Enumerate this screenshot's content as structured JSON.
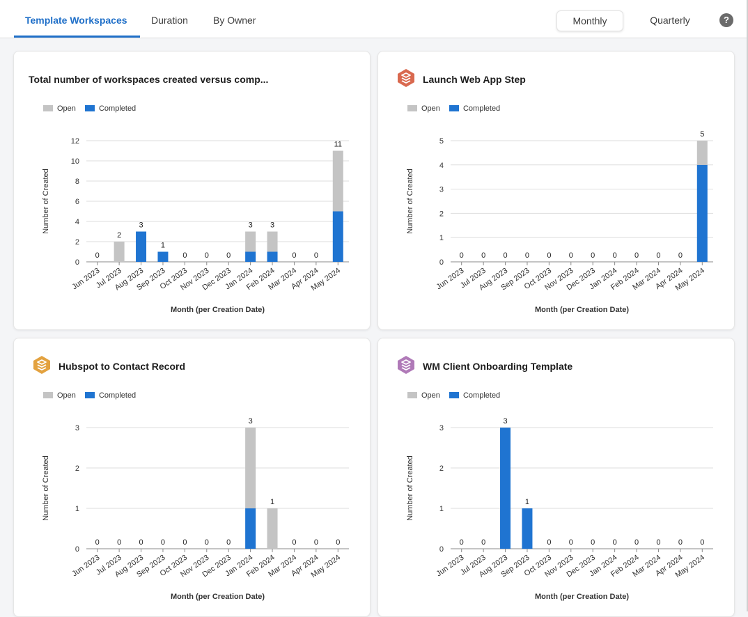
{
  "tabs": [
    "Template Workspaces",
    "Duration",
    "By Owner"
  ],
  "active_tab": 0,
  "period": {
    "monthly": "Monthly",
    "quarterly": "Quarterly",
    "selected": "Monthly"
  },
  "help_label": "?",
  "legend": {
    "open": "Open",
    "completed": "Completed"
  },
  "colors": {
    "open": "#c4c4c4",
    "completed": "#1f74d1",
    "accent": "#1f6fc8"
  },
  "axis": {
    "ylabel": "Number of Created",
    "xlabel": "Month (per Creation Date)"
  },
  "cards": [
    {
      "title": "Total number of workspaces created versus comp...",
      "icon": null
    },
    {
      "title": "Launch Web App Step",
      "icon": "stack-icon-red"
    },
    {
      "title": "Hubspot to Contact Record",
      "icon": "stack-icon-orange"
    },
    {
      "title": "WM Client Onboarding Template",
      "icon": "stack-icon-purple"
    }
  ],
  "chart_data": [
    {
      "type": "bar",
      "stacked": true,
      "categories": [
        "Jun 2023",
        "Jul 2023",
        "Aug 2023",
        "Sep 2023",
        "Oct 2023",
        "Nov 2023",
        "Dec 2023",
        "Jan 2024",
        "Feb 2024",
        "Mar 2024",
        "Apr 2024",
        "May 2024"
      ],
      "series": [
        {
          "name": "Completed",
          "values": [
            0,
            0,
            3,
            1,
            0,
            0,
            0,
            1,
            1,
            0,
            0,
            5
          ]
        },
        {
          "name": "Open",
          "values": [
            0,
            2,
            0,
            0,
            0,
            0,
            0,
            2,
            2,
            0,
            0,
            6
          ]
        }
      ],
      "totals": [
        0,
        2,
        3,
        1,
        0,
        0,
        0,
        3,
        3,
        0,
        0,
        11
      ],
      "yticks": [
        0,
        2,
        4,
        6,
        8,
        10,
        12
      ],
      "ylim": [
        0,
        12
      ],
      "title": "Total number of workspaces created versus comp...",
      "xlabel": "Month (per Creation Date)",
      "ylabel": "Number of Created",
      "legend": "top-left",
      "grid": true
    },
    {
      "type": "bar",
      "stacked": true,
      "categories": [
        "Jun 2023",
        "Jul 2023",
        "Aug 2023",
        "Sep 2023",
        "Oct 2023",
        "Nov 2023",
        "Dec 2023",
        "Jan 2024",
        "Feb 2024",
        "Mar 2024",
        "Apr 2024",
        "May 2024"
      ],
      "series": [
        {
          "name": "Completed",
          "values": [
            0,
            0,
            0,
            0,
            0,
            0,
            0,
            0,
            0,
            0,
            0,
            4
          ]
        },
        {
          "name": "Open",
          "values": [
            0,
            0,
            0,
            0,
            0,
            0,
            0,
            0,
            0,
            0,
            0,
            1
          ]
        }
      ],
      "totals": [
        0,
        0,
        0,
        0,
        0,
        0,
        0,
        0,
        0,
        0,
        0,
        5
      ],
      "yticks": [
        0,
        1,
        2,
        3,
        4,
        5
      ],
      "ylim": [
        0,
        5
      ],
      "title": "Launch Web App Step",
      "xlabel": "Month (per Creation Date)",
      "ylabel": "Number of Created",
      "legend": "top-left",
      "grid": true
    },
    {
      "type": "bar",
      "stacked": true,
      "categories": [
        "Jun 2023",
        "Jul 2023",
        "Aug 2023",
        "Sep 2023",
        "Oct 2023",
        "Nov 2023",
        "Dec 2023",
        "Jan 2024",
        "Feb 2024",
        "Mar 2024",
        "Apr 2024",
        "May 2024"
      ],
      "series": [
        {
          "name": "Completed",
          "values": [
            0,
            0,
            0,
            0,
            0,
            0,
            0,
            1,
            0,
            0,
            0,
            0
          ]
        },
        {
          "name": "Open",
          "values": [
            0,
            0,
            0,
            0,
            0,
            0,
            0,
            2,
            1,
            0,
            0,
            0
          ]
        }
      ],
      "totals": [
        0,
        0,
        0,
        0,
        0,
        0,
        0,
        3,
        1,
        0,
        0,
        0
      ],
      "yticks": [
        0,
        1,
        2,
        3
      ],
      "ylim": [
        0,
        3
      ],
      "title": "Hubspot to Contact Record",
      "xlabel": "Month (per Creation Date)",
      "ylabel": "Number of Created",
      "legend": "top-left",
      "grid": true
    },
    {
      "type": "bar",
      "stacked": true,
      "categories": [
        "Jun 2023",
        "Jul 2023",
        "Aug 2023",
        "Sep 2023",
        "Oct 2023",
        "Nov 2023",
        "Dec 2023",
        "Jan 2024",
        "Feb 2024",
        "Mar 2024",
        "Apr 2024",
        "May 2024"
      ],
      "series": [
        {
          "name": "Completed",
          "values": [
            0,
            0,
            3,
            1,
            0,
            0,
            0,
            0,
            0,
            0,
            0,
            0
          ]
        },
        {
          "name": "Open",
          "values": [
            0,
            0,
            0,
            0,
            0,
            0,
            0,
            0,
            0,
            0,
            0,
            0
          ]
        }
      ],
      "totals": [
        0,
        0,
        3,
        1,
        0,
        0,
        0,
        0,
        0,
        0,
        0,
        0
      ],
      "yticks": [
        0,
        1,
        2,
        3
      ],
      "ylim": [
        0,
        3
      ],
      "title": "WM Client Onboarding Template",
      "xlabel": "Month (per Creation Date)",
      "ylabel": "Number of Created",
      "legend": "top-left",
      "grid": true
    }
  ]
}
